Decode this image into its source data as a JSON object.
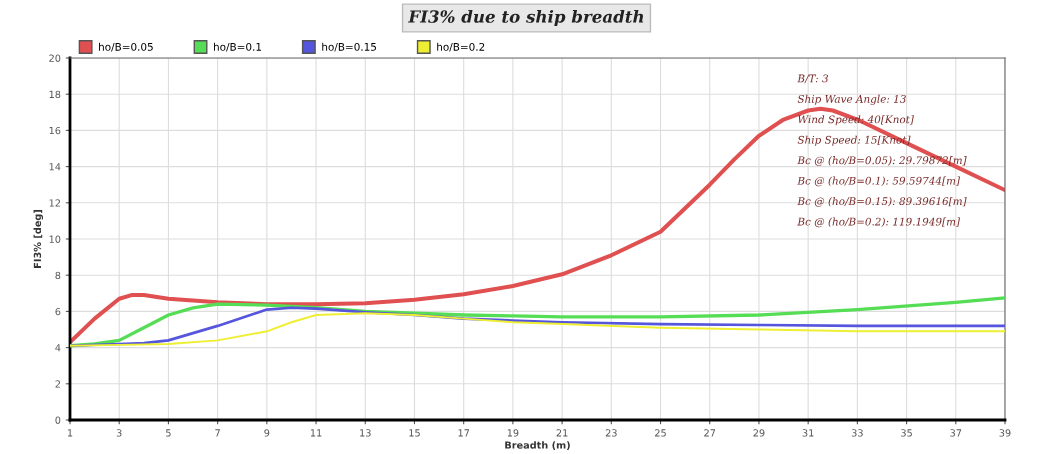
{
  "chart_data": {
    "type": "line",
    "title": "FI3% due to ship breadth",
    "xlabel": "Breadth (m)",
    "ylabel": "FI3% [deg]",
    "annotations": [
      "B/T: 3",
      "Ship Wave Angle: 13",
      "Wind Speed: 40[Knot]",
      "Ship Speed: 15[Knot]",
      "Bc @ (ho/B=0.05): 29.79872[m]",
      "Bc @ (ho/B=0.1): 59.59744[m]",
      "Bc @ (ho/B=0.15): 89.39616[m]",
      "Bc @ (ho/B=0.2): 119.1949[m]"
    ],
    "xlim": [
      1,
      39
    ],
    "xticks": [
      1,
      3,
      5,
      7,
      9,
      11,
      13,
      15,
      17,
      19,
      21,
      23,
      25,
      27,
      29,
      31,
      33,
      35,
      37,
      39
    ],
    "ylim": [
      0,
      20
    ],
    "yticks": [
      0,
      2,
      4,
      6,
      8,
      10,
      12,
      14,
      16,
      18,
      20
    ],
    "grid": true,
    "legend": "top left",
    "marker": "none",
    "line_style": "solid",
    "series": [
      {
        "name": "ho/B=0.05",
        "color": "#e05050",
        "x": [
          1,
          2,
          3,
          3.5,
          4,
          5,
          6,
          7,
          9,
          11,
          13,
          15,
          17,
          19,
          21,
          23,
          25,
          27,
          28,
          29,
          30,
          31,
          31.5,
          32,
          33,
          35,
          37,
          39
        ],
        "values": [
          4.3,
          5.6,
          6.7,
          6.9,
          6.9,
          6.7,
          6.6,
          6.5,
          6.4,
          6.4,
          6.45,
          6.65,
          6.95,
          7.4,
          8.05,
          9.1,
          10.4,
          13.0,
          14.4,
          15.7,
          16.6,
          17.1,
          17.2,
          17.1,
          16.6,
          15.3,
          14.0,
          12.7
        ]
      },
      {
        "name": "ho/B=0.1",
        "color": "#55dd55",
        "x": [
          1,
          2,
          3,
          4,
          5,
          6,
          7,
          9,
          11,
          13,
          15,
          17,
          19,
          21,
          25,
          29,
          33,
          37,
          39
        ],
        "values": [
          4.1,
          4.2,
          4.4,
          5.1,
          5.8,
          6.2,
          6.4,
          6.35,
          6.2,
          6.0,
          5.9,
          5.8,
          5.75,
          5.7,
          5.7,
          5.8,
          6.1,
          6.5,
          6.75
        ]
      },
      {
        "name": "ho/B=0.15",
        "color": "#5555dd",
        "x": [
          1,
          3,
          4,
          5,
          7,
          9,
          10,
          11,
          13,
          15,
          17,
          19,
          21,
          25,
          29,
          33,
          39
        ],
        "values": [
          4.1,
          4.2,
          4.25,
          4.4,
          5.2,
          6.1,
          6.2,
          6.15,
          5.95,
          5.8,
          5.6,
          5.5,
          5.4,
          5.3,
          5.25,
          5.2,
          5.2
        ]
      },
      {
        "name": "ho/B=0.2",
        "color": "#eeee33",
        "x": [
          1,
          3,
          5,
          7,
          9,
          10,
          11,
          13,
          15,
          17,
          19,
          21,
          25,
          29,
          33,
          39
        ],
        "values": [
          4.1,
          4.15,
          4.2,
          4.4,
          4.9,
          5.4,
          5.8,
          5.9,
          5.8,
          5.6,
          5.4,
          5.3,
          5.1,
          5.0,
          4.9,
          4.9
        ]
      }
    ]
  }
}
